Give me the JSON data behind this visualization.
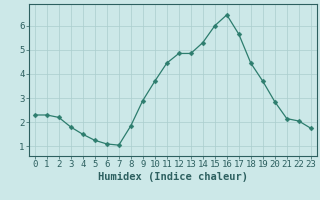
{
  "x": [
    0,
    1,
    2,
    3,
    4,
    5,
    6,
    7,
    8,
    9,
    10,
    11,
    12,
    13,
    14,
    15,
    16,
    17,
    18,
    19,
    20,
    21,
    22,
    23
  ],
  "y": [
    2.3,
    2.3,
    2.2,
    1.8,
    1.5,
    1.25,
    1.1,
    1.05,
    1.85,
    2.9,
    3.7,
    4.45,
    4.85,
    4.85,
    5.3,
    6.0,
    6.45,
    5.65,
    4.45,
    3.7,
    2.85,
    2.15,
    2.05,
    1.75
  ],
  "line_color": "#2d7d6e",
  "marker": "D",
  "marker_size": 2.5,
  "bg_color": "#cce8e8",
  "grid_color": "#aacece",
  "axis_color": "#2d6060",
  "xlabel": "Humidex (Indice chaleur)",
  "xlim": [
    -0.5,
    23.5
  ],
  "ylim": [
    0.6,
    6.9
  ],
  "yticks": [
    1,
    2,
    3,
    4,
    5,
    6
  ],
  "xticks": [
    0,
    1,
    2,
    3,
    4,
    5,
    6,
    7,
    8,
    9,
    10,
    11,
    12,
    13,
    14,
    15,
    16,
    17,
    18,
    19,
    20,
    21,
    22,
    23
  ],
  "tick_fontsize": 6.5,
  "xlabel_fontsize": 7.5
}
